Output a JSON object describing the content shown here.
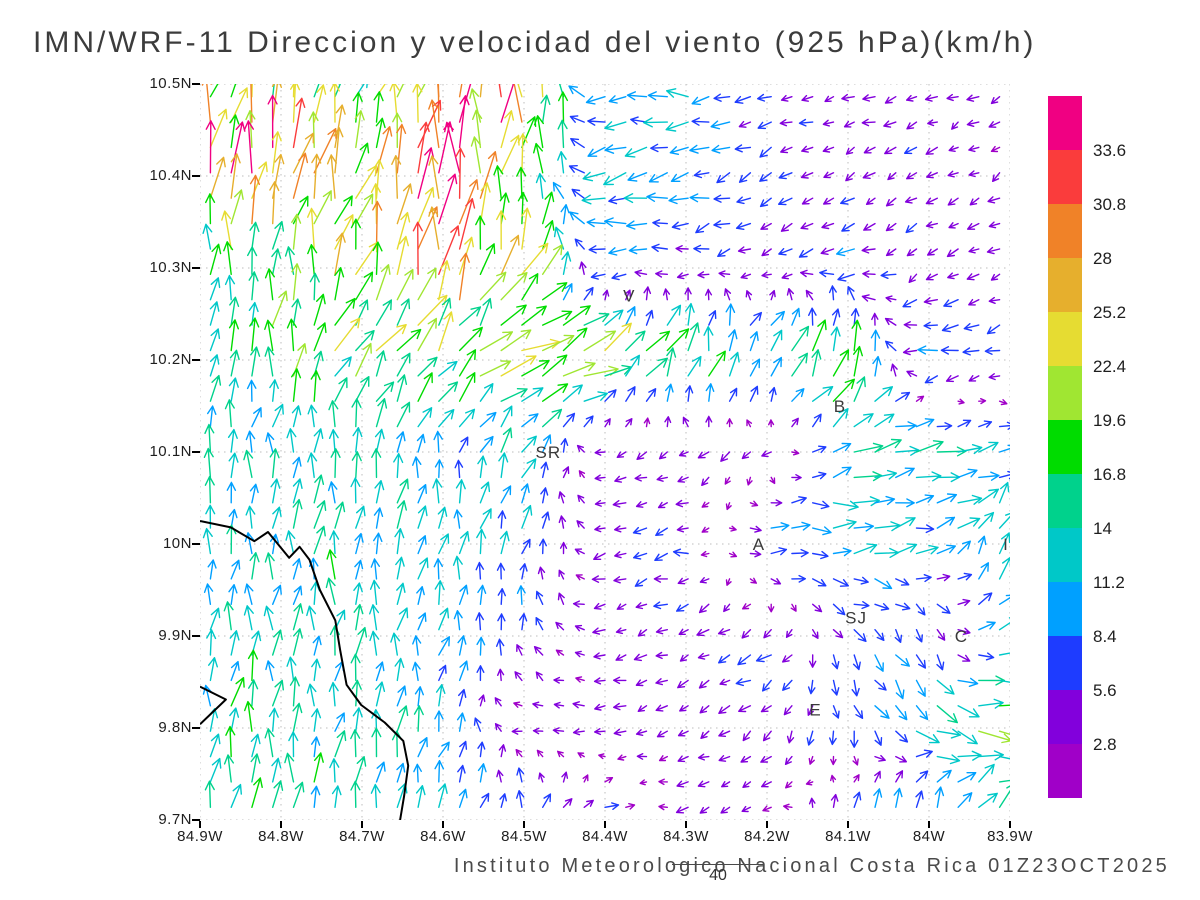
{
  "title": "IMN/WRF-11 Direccion y velocidad del viento (925 hPa)(km/h)",
  "footer": {
    "credit": "Instituto Meteorologico Nacional Costa Rica 01Z23OCT2025",
    "frame_number": "40"
  },
  "chart_data": {
    "type": "quiver",
    "title": "IMN/WRF-11 Direccion y velocidad del viento (925 hPa)(km/h)",
    "units": "km/h",
    "level": "925 hPa",
    "valid_time": "01Z23OCT2025",
    "grid": "dotted",
    "x_axis": {
      "tick_values": [
        84.9,
        84.8,
        84.7,
        84.6,
        84.5,
        84.4,
        84.3,
        84.2,
        84.1,
        84.0,
        83.9
      ],
      "tick_labels": [
        "84.9W",
        "84.8W",
        "84.7W",
        "84.6W",
        "84.5W",
        "84.4W",
        "84.3W",
        "84.2W",
        "84.1W",
        "84W",
        "83.9W"
      ]
    },
    "y_axis": {
      "tick_values": [
        10.5,
        10.4,
        10.3,
        10.2,
        10.1,
        10.0,
        9.9,
        9.8,
        9.7
      ],
      "tick_labels": [
        "10.5N",
        "10.4N",
        "10.3N",
        "10.2N",
        "10.1N",
        "10N",
        "9.9N",
        "9.8N",
        "9.7N"
      ]
    },
    "colorbar": {
      "position": "right",
      "levels": [
        2.8,
        5.6,
        8.4,
        11.2,
        14,
        16.8,
        19.6,
        22.4,
        25.2,
        28,
        30.8,
        33.6
      ],
      "labels": [
        "2.8",
        "5.6",
        "8.4",
        "11.2",
        "14",
        "16.8",
        "19.6",
        "22.4",
        "25.2",
        "28",
        "30.8",
        "33.6"
      ],
      "colors": [
        "#a000c8",
        "#8200dc",
        "#1e3cff",
        "#00a0ff",
        "#00c8c8",
        "#00d28c",
        "#00dc00",
        "#a0e632",
        "#e6dc32",
        "#e6af2d",
        "#f08228",
        "#fa3c3c",
        "#f00082"
      ]
    },
    "stations": [
      {
        "label": "V",
        "lon": 84.37,
        "lat": 10.27
      },
      {
        "label": "B",
        "lon": 84.11,
        "lat": 10.15
      },
      {
        "label": "SR",
        "lon": 84.47,
        "lat": 10.1
      },
      {
        "label": "A",
        "lon": 84.21,
        "lat": 10.0
      },
      {
        "label": "SJ",
        "lon": 84.09,
        "lat": 9.92
      },
      {
        "label": "C",
        "lon": 83.96,
        "lat": 9.9
      },
      {
        "label": "E",
        "lon": 84.14,
        "lat": 9.82
      },
      {
        "label": "I",
        "lon": 83.905,
        "lat": 10.0
      }
    ],
    "coastlines": [
      [
        [
          84.9,
          10.025
        ],
        [
          84.862,
          10.018
        ],
        [
          84.833,
          10.003
        ],
        [
          84.816,
          10.013
        ],
        [
          84.79,
          9.985
        ],
        [
          84.777,
          9.997
        ],
        [
          84.765,
          9.983
        ],
        [
          84.752,
          9.95
        ],
        [
          84.733,
          9.917
        ],
        [
          84.727,
          9.885
        ],
        [
          84.719,
          9.847
        ],
        [
          84.701,
          9.825
        ],
        [
          84.672,
          9.806
        ],
        [
          84.649,
          9.786
        ],
        [
          84.643,
          9.759
        ],
        [
          84.648,
          9.726
        ],
        [
          84.653,
          9.7
        ]
      ],
      [
        [
          84.9,
          9.845
        ],
        [
          84.868,
          9.831
        ],
        [
          84.9,
          9.804
        ]
      ]
    ],
    "wind_grid": {
      "order": "rows north to south, columns west to east",
      "lons": [
        84.9,
        84.8,
        84.7,
        84.6,
        84.5,
        84.4,
        84.3,
        84.2,
        84.1,
        84.0,
        83.9
      ],
      "lats": [
        10.5,
        10.4,
        10.3,
        10.2,
        10.1,
        10.0,
        9.9,
        9.8,
        9.7
      ],
      "uv_kmh": [
        [
          [
            3,
            16
          ],
          [
            6,
            18
          ],
          [
            8,
            12
          ],
          [
            2,
            29
          ],
          [
            0,
            28
          ],
          [
            -8,
            -1
          ],
          [
            -11,
            0
          ],
          [
            -5,
            -2
          ],
          [
            -4,
            -1
          ],
          [
            -4,
            -2
          ],
          [
            -3,
            -2
          ]
        ],
        [
          [
            2,
            31
          ],
          [
            4,
            30
          ],
          [
            6,
            24
          ],
          [
            3,
            29
          ],
          [
            2,
            24
          ],
          [
            -12,
            -2
          ],
          [
            -9,
            -2
          ],
          [
            -5,
            -3
          ],
          [
            -4,
            -2
          ],
          [
            -4,
            -2
          ],
          [
            -3,
            -2
          ]
        ],
        [
          [
            1,
            14
          ],
          [
            2,
            18
          ],
          [
            8,
            20
          ],
          [
            4,
            28
          ],
          [
            10,
            20
          ],
          [
            -8,
            -1
          ],
          [
            -5,
            -1
          ],
          [
            -4,
            -2
          ],
          [
            -8,
            -2
          ],
          [
            -4,
            -3
          ],
          [
            -4,
            -2
          ]
        ],
        [
          [
            1,
            13
          ],
          [
            3,
            17
          ],
          [
            10,
            18
          ],
          [
            12,
            14
          ],
          [
            22,
            8
          ],
          [
            18,
            10
          ],
          [
            5,
            18
          ],
          [
            8,
            12
          ],
          [
            8,
            18
          ],
          [
            -10,
            -2
          ],
          [
            -5,
            -2
          ]
        ],
        [
          [
            1,
            13
          ],
          [
            1,
            13
          ],
          [
            2,
            13
          ],
          [
            2,
            11
          ],
          [
            6,
            10
          ],
          [
            -4,
            -1
          ],
          [
            -3,
            -2
          ],
          [
            -4,
            -3
          ],
          [
            14,
            4
          ],
          [
            13,
            2
          ],
          [
            10,
            2
          ]
        ],
        [
          [
            1,
            13
          ],
          [
            1,
            13
          ],
          [
            1,
            13
          ],
          [
            2,
            12
          ],
          [
            2,
            10
          ],
          [
            -4,
            -1
          ],
          [
            -6,
            -1
          ],
          [
            9,
            1
          ],
          [
            11,
            1
          ],
          [
            10,
            2
          ],
          [
            3,
            16
          ]
        ],
        [
          [
            1,
            14
          ],
          [
            1,
            14
          ],
          [
            2,
            13
          ],
          [
            2,
            10
          ],
          [
            -1,
            6
          ],
          [
            -4,
            -1
          ],
          [
            -4,
            -2
          ],
          [
            -6,
            -3
          ],
          [
            5,
            -5
          ],
          [
            2,
            -8
          ],
          [
            10,
            8
          ]
        ],
        [
          [
            1,
            14
          ],
          [
            1,
            14
          ],
          [
            2,
            13
          ],
          [
            2,
            10
          ],
          [
            -3,
            -1
          ],
          [
            -4,
            -1
          ],
          [
            -4,
            -1
          ],
          [
            -3,
            -3
          ],
          [
            0,
            -7
          ],
          [
            12,
            -6
          ],
          [
            18,
            -3
          ]
        ],
        [
          [
            1,
            14
          ],
          [
            1,
            15
          ],
          [
            2,
            14
          ],
          [
            5,
            10
          ],
          [
            1,
            9
          ],
          [
            6,
            2
          ],
          [
            -4,
            -1
          ],
          [
            -3,
            -2
          ],
          [
            1,
            8
          ],
          [
            3,
            14
          ],
          [
            8,
            12
          ]
        ]
      ]
    }
  }
}
